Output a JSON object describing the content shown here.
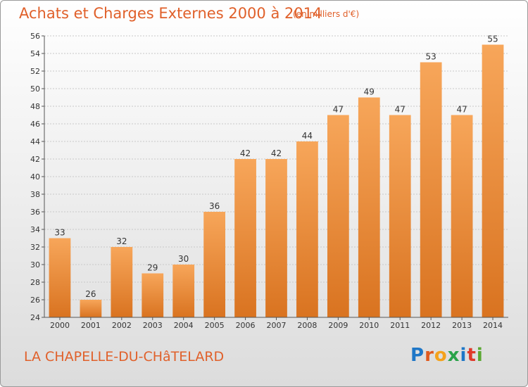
{
  "chart_data": {
    "type": "bar",
    "title": "Achats et Charges Externes 2000 à 2014",
    "subtitle": "(en milliers d'€)",
    "categories": [
      "2000",
      "2001",
      "2002",
      "2003",
      "2004",
      "2005",
      "2006",
      "2007",
      "2008",
      "2009",
      "2010",
      "2011",
      "2012",
      "2013",
      "2014"
    ],
    "values": [
      33,
      26,
      32,
      29,
      30,
      36,
      42,
      42,
      44,
      47,
      49,
      47,
      53,
      47,
      55
    ],
    "ylim": [
      24,
      56
    ],
    "yticks": [
      24,
      26,
      28,
      30,
      32,
      34,
      36,
      38,
      40,
      42,
      44,
      46,
      48,
      50,
      52,
      54,
      56
    ],
    "xlabel": "",
    "ylabel": "",
    "grid": true
  },
  "footer": {
    "place": "LA CHAPELLE-DU-CHâTELARD",
    "logo_text": "Proxiti"
  },
  "colors": {
    "title": "#e0602a",
    "bar_light": "#f7a65a",
    "bar_dark": "#d97320",
    "logo_letters": [
      "#1f77c7",
      "#e05a1e",
      "#f4a21c",
      "#2aa24a",
      "#1f77c7",
      "#e0392a",
      "#5aa832"
    ]
  }
}
